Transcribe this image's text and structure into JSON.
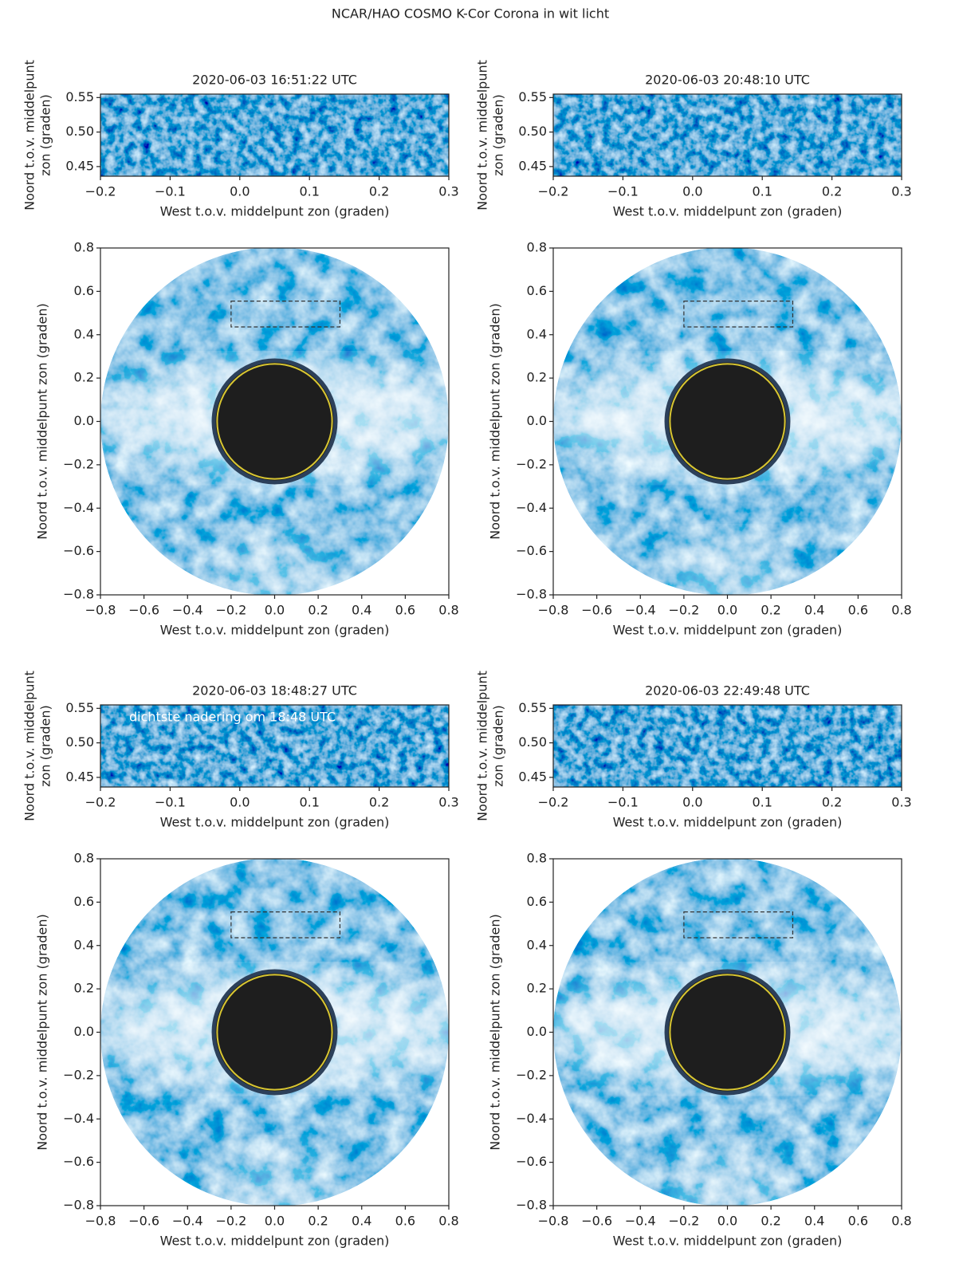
{
  "title": "NCAR/HAO COSMO K-Cor Corona in wit licht",
  "chart_data": [
    {
      "type": "image",
      "title": "2020-06-03 16:51:22 UTC",
      "xlabel": "West t.o.v. middelpunt zon (graden)",
      "ylabel": [
        "Noord t.o.v. middelpunt",
        "zon (graden)"
      ],
      "xlim": [
        -0.2,
        0.3
      ],
      "ylim": [
        0.436,
        0.555
      ],
      "xticks": [
        {
          "value": -0.2,
          "label": "−0.2"
        },
        {
          "value": -0.1,
          "label": "−0.1"
        },
        {
          "value": 0,
          "label": "0.0"
        },
        0.1,
        0.2,
        0.3
      ],
      "yticks": [
        0.45,
        {
          "value": 0.5,
          "label": "0.50"
        },
        0.55
      ]
    },
    {
      "type": "image",
      "title": "2020-06-03 20:48:10 UTC",
      "xlabel": "West t.o.v. middelpunt zon (graden)",
      "ylabel": [
        "Noord t.o.v. middelpunt",
        "zon (graden)"
      ],
      "xlim": [
        -0.2,
        0.3
      ],
      "ylim": [
        0.436,
        0.555
      ],
      "xticks": [
        {
          "value": -0.2,
          "label": "−0.2"
        },
        {
          "value": -0.1,
          "label": "−0.1"
        },
        {
          "value": 0,
          "label": "0.0"
        },
        0.1,
        0.2,
        0.3
      ],
      "yticks": [
        0.45,
        {
          "value": 0.5,
          "label": "0.50"
        },
        0.55
      ]
    },
    {
      "type": "image",
      "xlabel": "West t.o.v. middelpunt zon (graden)",
      "ylabel": "Noord t.o.v. middelpunt zon (graden)",
      "xlim": [
        -0.8,
        0.8
      ],
      "ylim": [
        -0.8,
        0.8
      ],
      "xticks": [
        {
          "value": -0.8,
          "label": "−0.8"
        },
        {
          "value": -0.6,
          "label": "−0.6"
        },
        {
          "value": -0.4,
          "label": "−0.4"
        },
        {
          "value": -0.2,
          "label": "−0.2"
        },
        {
          "value": 0,
          "label": "0.0"
        },
        0.2,
        0.4,
        0.6,
        0.8
      ],
      "yticks": [
        {
          "value": -0.8,
          "label": "−0.8"
        },
        {
          "value": -0.6,
          "label": "−0.6"
        },
        {
          "value": -0.4,
          "label": "−0.4"
        },
        {
          "value": -0.2,
          "label": "−0.2"
        },
        {
          "value": 0,
          "label": "0.0"
        },
        0.2,
        0.4,
        0.6,
        0.8
      ]
    },
    {
      "type": "image",
      "xlabel": "West t.o.v. middelpunt zon (graden)",
      "ylabel": "Noord t.o.v. middelpunt zon (graden)",
      "xlim": [
        -0.8,
        0.8
      ],
      "ylim": [
        -0.8,
        0.8
      ],
      "xticks": [
        {
          "value": -0.8,
          "label": "−0.8"
        },
        {
          "value": -0.6,
          "label": "−0.6"
        },
        {
          "value": -0.4,
          "label": "−0.4"
        },
        {
          "value": -0.2,
          "label": "−0.2"
        },
        {
          "value": 0,
          "label": "0.0"
        },
        0.2,
        0.4,
        0.6,
        0.8
      ],
      "yticks": [
        {
          "value": -0.8,
          "label": "−0.8"
        },
        {
          "value": -0.6,
          "label": "−0.6"
        },
        {
          "value": -0.4,
          "label": "−0.4"
        },
        {
          "value": -0.2,
          "label": "−0.2"
        },
        {
          "value": 0,
          "label": "0.0"
        },
        0.2,
        0.4,
        0.6,
        0.8
      ]
    },
    {
      "type": "image",
      "title": "2020-06-03 18:48:27 UTC",
      "annotation": "dichtste nadering om 18:48 UTC",
      "xlabel": "West t.o.v. middelpunt zon (graden)",
      "ylabel": [
        "Noord t.o.v. middelpunt",
        "zon (graden)"
      ],
      "xlim": [
        -0.2,
        0.3
      ],
      "ylim": [
        0.436,
        0.555
      ],
      "xticks": [
        {
          "value": -0.2,
          "label": "−0.2"
        },
        {
          "value": -0.1,
          "label": "−0.1"
        },
        {
          "value": 0,
          "label": "0.0"
        },
        0.1,
        0.2,
        0.3
      ],
      "yticks": [
        0.45,
        {
          "value": 0.5,
          "label": "0.50"
        },
        0.55
      ]
    },
    {
      "type": "image",
      "title": "2020-06-03 22:49:48 UTC",
      "xlabel": "West t.o.v. middelpunt zon (graden)",
      "ylabel": [
        "Noord t.o.v. middelpunt",
        "zon (graden)"
      ],
      "xlim": [
        -0.2,
        0.3
      ],
      "ylim": [
        0.436,
        0.555
      ],
      "xticks": [
        {
          "value": -0.2,
          "label": "−0.2"
        },
        {
          "value": -0.1,
          "label": "−0.1"
        },
        {
          "value": 0,
          "label": "0.0"
        },
        0.1,
        0.2,
        0.3
      ],
      "yticks": [
        0.45,
        {
          "value": 0.5,
          "label": "0.50"
        },
        0.55
      ]
    },
    {
      "type": "image",
      "xlabel": "West t.o.v. middelpunt zon (graden)",
      "ylabel": "Noord t.o.v. middelpunt zon (graden)",
      "xlim": [
        -0.8,
        0.8
      ],
      "ylim": [
        -0.8,
        0.8
      ],
      "xticks": [
        {
          "value": -0.8,
          "label": "−0.8"
        },
        {
          "value": -0.6,
          "label": "−0.6"
        },
        {
          "value": -0.4,
          "label": "−0.4"
        },
        {
          "value": -0.2,
          "label": "−0.2"
        },
        {
          "value": 0,
          "label": "0.0"
        },
        0.2,
        0.4,
        0.6,
        0.8
      ],
      "yticks": [
        {
          "value": -0.8,
          "label": "−0.8"
        },
        {
          "value": -0.6,
          "label": "−0.6"
        },
        {
          "value": -0.4,
          "label": "−0.4"
        },
        {
          "value": -0.2,
          "label": "−0.2"
        },
        {
          "value": 0,
          "label": "0.0"
        },
        0.2,
        0.4,
        0.6,
        0.8
      ]
    },
    {
      "type": "image",
      "xlabel": "West t.o.v. middelpunt zon (graden)",
      "ylabel": "Noord t.o.v. middelpunt zon (graden)",
      "xlim": [
        -0.8,
        0.8
      ],
      "ylim": [
        -0.8,
        0.8
      ],
      "xticks": [
        {
          "value": -0.8,
          "label": "−0.8"
        },
        {
          "value": -0.6,
          "label": "−0.6"
        },
        {
          "value": -0.4,
          "label": "−0.4"
        },
        {
          "value": -0.2,
          "label": "−0.2"
        },
        {
          "value": 0,
          "label": "0.0"
        },
        0.2,
        0.4,
        0.6,
        0.8
      ],
      "yticks": [
        {
          "value": -0.8,
          "label": "−0.8"
        },
        {
          "value": -0.6,
          "label": "−0.6"
        },
        {
          "value": -0.4,
          "label": "−0.4"
        },
        {
          "value": -0.2,
          "label": "−0.2"
        },
        {
          "value": 0,
          "label": "0.0"
        },
        0.2,
        0.4,
        0.6,
        0.8
      ]
    }
  ]
}
